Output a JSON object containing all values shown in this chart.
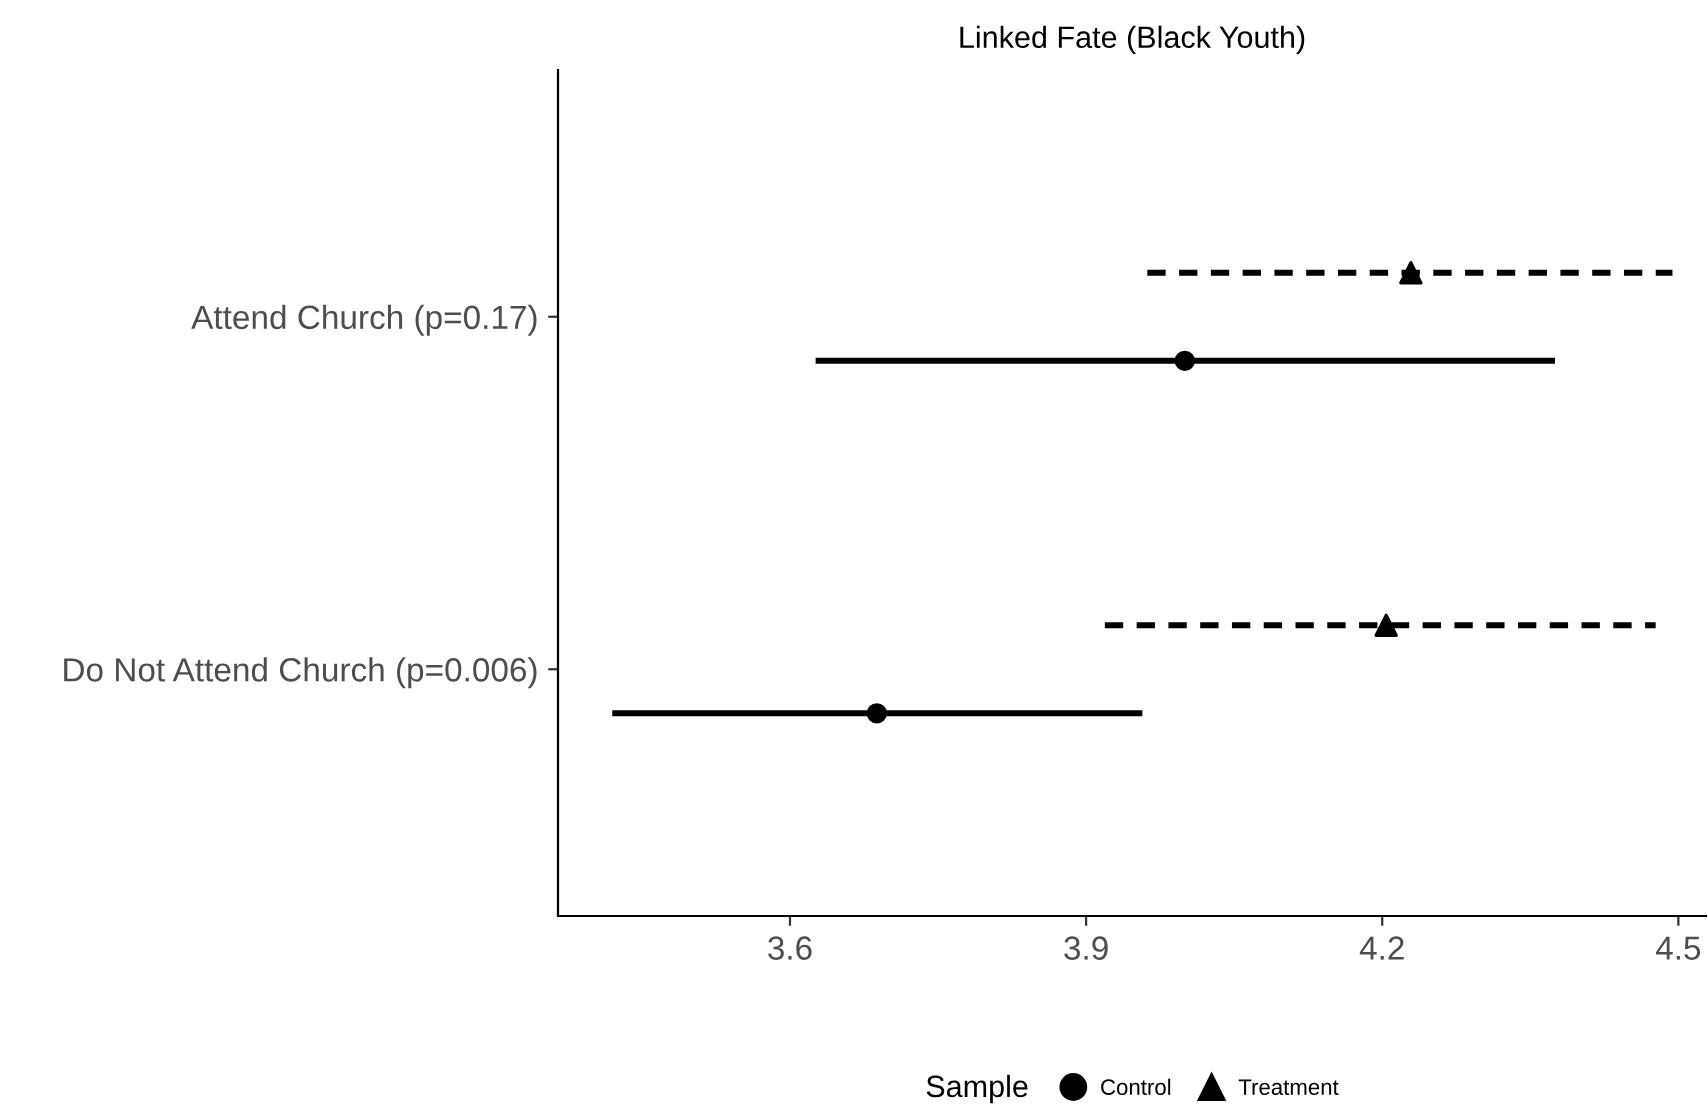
{
  "chart_data": {
    "type": "scatter",
    "orientation": "horizontal",
    "title": "Linked Fate (Black Youth)",
    "categories": [
      "Attend Church (p=0.17)",
      "Do Not Attend Church (p=0.006)"
    ],
    "series": [
      {
        "name": "Control",
        "color": "#000000",
        "marker": "circle",
        "line_style": "solid",
        "values": [
          4.0,
          3.688
        ],
        "errors": [
          [
            3.626,
            4.375
          ],
          [
            3.42,
            3.957
          ]
        ]
      },
      {
        "name": "Treatment",
        "color": "#000000",
        "marker": "triangle",
        "line_style": "dashed",
        "values": [
          4.229,
          4.204
        ],
        "errors": [
          [
            3.962,
            4.494
          ],
          [
            3.919,
            4.477
          ]
        ]
      }
    ],
    "xlim": [
      3.365,
      4.528
    ],
    "xticks": [
      3.6,
      3.9,
      4.2,
      4.5
    ],
    "legend_title": "Sample",
    "legend": "bottom",
    "grid": false
  }
}
